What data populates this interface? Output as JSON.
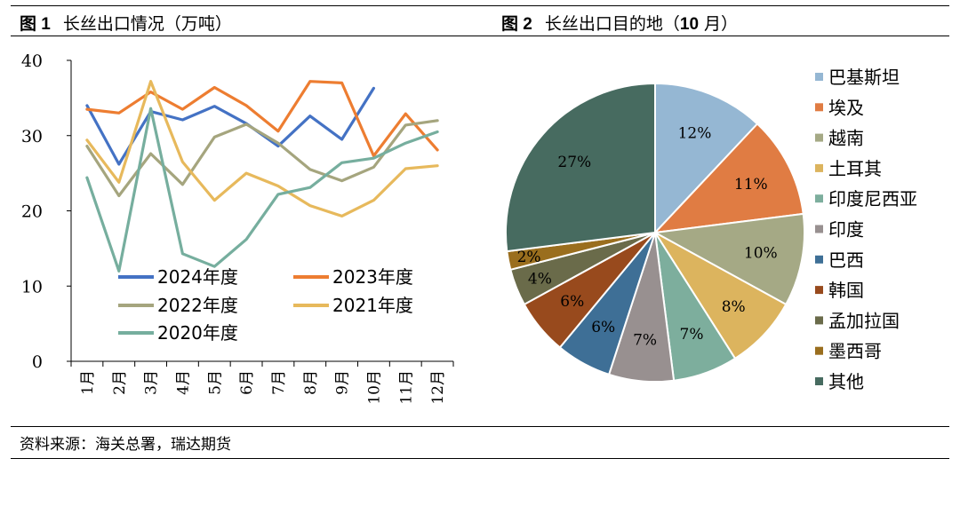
{
  "header": {
    "fig1_num": "图 1",
    "fig1_title": "长丝出口情况（万吨）",
    "fig2_num": "图 2",
    "fig2_title_a": "长丝出口目的地（",
    "fig2_title_num": "10",
    "fig2_title_b": " 月）"
  },
  "footer": {
    "source": "资料来源：海关总署，瑞达期货"
  },
  "chart_data": [
    {
      "type": "line",
      "title": "",
      "xlabel": "",
      "ylabel": "",
      "categories": [
        "1月",
        "2月",
        "3月",
        "4月",
        "5月",
        "6月",
        "7月",
        "8月",
        "9月",
        "10月",
        "11月",
        "12月"
      ],
      "ylim": [
        0,
        40
      ],
      "yticks": [
        0,
        10,
        20,
        30,
        40
      ],
      "grid": false,
      "legend_position": "inside-bottom",
      "series": [
        {
          "name": "2024年度",
          "color": "#4472C4",
          "values": [
            34.0,
            26.2,
            33.2,
            32.1,
            33.9,
            31.6,
            28.6,
            32.6,
            29.5,
            36.3,
            null,
            null
          ]
        },
        {
          "name": "2023年度",
          "color": "#ED7D31",
          "values": [
            33.5,
            33.0,
            35.8,
            33.5,
            36.4,
            34.0,
            30.6,
            37.2,
            37.0,
            27.3,
            32.9,
            28.1
          ]
        },
        {
          "name": "2022年度",
          "color": "#A5A57E",
          "values": [
            28.6,
            22.0,
            27.6,
            23.5,
            29.8,
            31.5,
            29.0,
            25.5,
            24.0,
            25.8,
            31.4,
            32.0
          ]
        },
        {
          "name": "2021年度",
          "color": "#E7B95C",
          "values": [
            29.4,
            23.8,
            37.2,
            26.5,
            21.4,
            25.0,
            23.3,
            20.7,
            19.3,
            21.4,
            25.6,
            26.0
          ]
        },
        {
          "name": "2020年度",
          "color": "#76AE9E",
          "values": [
            24.4,
            12.0,
            33.6,
            14.3,
            12.6,
            16.2,
            22.2,
            23.1,
            26.4,
            27.0,
            29.0,
            30.5
          ]
        }
      ]
    },
    {
      "type": "pie",
      "title": "",
      "legend_position": "right",
      "slices": [
        {
          "label": "巴基斯坦",
          "value": 12,
          "text": "12%",
          "color": "#95B7D3"
        },
        {
          "label": "埃及",
          "value": 11,
          "text": "11%",
          "color": "#E07C43"
        },
        {
          "label": "越南",
          "value": 10,
          "text": "10%",
          "color": "#A5A985"
        },
        {
          "label": "土耳其",
          "value": 8,
          "text": "8%",
          "color": "#DCB45E"
        },
        {
          "label": "印度尼西亚",
          "value": 7,
          "text": "7%",
          "color": "#7DAE9D"
        },
        {
          "label": "印度",
          "value": 7,
          "text": "7%",
          "color": "#989090"
        },
        {
          "label": "巴西",
          "value": 6,
          "text": "6%",
          "color": "#3E6F96"
        },
        {
          "label": "韩国",
          "value": 6,
          "text": "6%",
          "color": "#984A1D"
        },
        {
          "label": "孟加拉国",
          "value": 4,
          "text": "4%",
          "color": "#6A6B4A"
        },
        {
          "label": "墨西哥",
          "value": 2,
          "text": "2%",
          "color": "#9A6E1E"
        },
        {
          "label": "其他",
          "value": 27,
          "text": "27%",
          "color": "#476B60"
        }
      ]
    }
  ]
}
